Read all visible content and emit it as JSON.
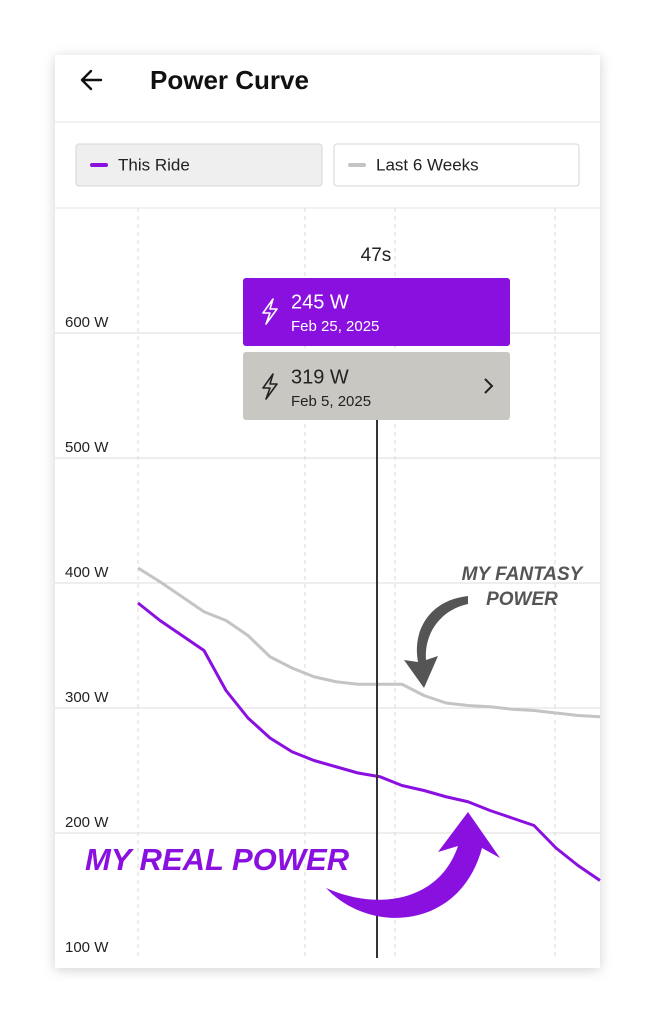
{
  "header": {
    "title": "Power Curve"
  },
  "chart_data": {
    "type": "line",
    "categories": [
      null,
      null,
      null,
      null,
      null,
      null,
      null,
      null,
      null,
      null,
      null,
      "47s",
      null,
      null,
      null,
      null,
      null,
      null,
      null,
      null,
      null,
      null
    ],
    "series": [
      {
        "name": "This Ride",
        "color": "#8a10e0",
        "values": [
          384,
          370,
          358,
          346,
          314,
          292,
          276,
          265,
          258,
          253,
          248,
          245,
          238,
          234,
          229,
          225,
          218,
          212,
          206,
          188,
          174,
          162
        ]
      },
      {
        "name": "Last 6 Weeks",
        "color": "#c4c4c4",
        "values": [
          412,
          401,
          389,
          377,
          370,
          358,
          341,
          332,
          325,
          321,
          319,
          319,
          319,
          310,
          304,
          302,
          301,
          299,
          298,
          296,
          294,
          293
        ]
      }
    ],
    "ylim": [
      100,
      700
    ],
    "yticks": [
      {
        "value": 100,
        "label": "100 W"
      },
      {
        "value": 200,
        "label": "200 W"
      },
      {
        "value": 300,
        "label": "300 W"
      },
      {
        "value": 400,
        "label": "400 W"
      },
      {
        "value": 500,
        "label": "500 W"
      },
      {
        "value": 600,
        "label": "600 W"
      }
    ],
    "grid": true,
    "tooltip": [
      {
        "label": "245 W",
        "date": "Feb 25, 2025"
      },
      {
        "label": "319 W",
        "date": "Feb 5, 2025"
      }
    ],
    "annotations": [
      "MY FANTASY",
      "POWER",
      "MY REAL POWER"
    ]
  }
}
